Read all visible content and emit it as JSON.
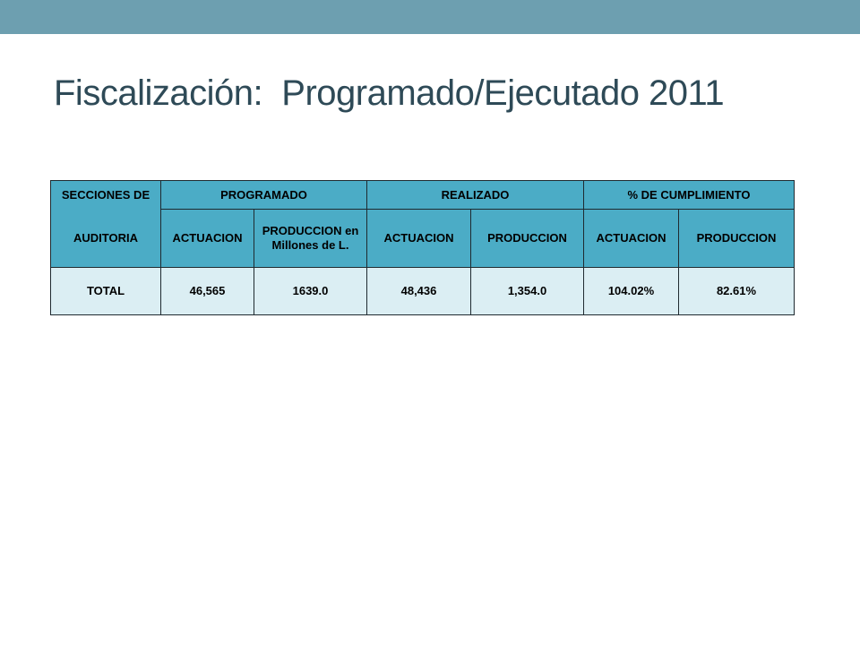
{
  "title": "Fiscalización:  Programado/Ejecutado 2011",
  "table": {
    "header_row1": {
      "secciones": "SECCIONES DE",
      "programado": "PROGRAMADO",
      "realizado": "REALIZADO",
      "cumplimiento": "% DE CUMPLIMIENTO"
    },
    "header_row2": {
      "auditoria": "AUDITORIA",
      "prog_actuacion": "ACTUACION",
      "prog_produccion": "PRODUCCION en Millones de L.",
      "real_actuacion": "ACTUACION",
      "real_produccion": "PRODUCCION",
      "cump_actuacion": "ACTUACION",
      "cump_produccion": "PRODUCCION"
    },
    "total_row": {
      "label": "TOTAL",
      "prog_actuacion": "46,565",
      "prog_produccion": "1639.0",
      "real_actuacion": "48,436",
      "real_produccion": "1,354.0",
      "cump_actuacion": "104.02%",
      "cump_produccion": "82.61%"
    }
  },
  "colors": {
    "top_band": "#6d9fb0",
    "title": "#2e4a57",
    "header_fill": "#4bacc6",
    "data_fill": "#dbeef3"
  }
}
